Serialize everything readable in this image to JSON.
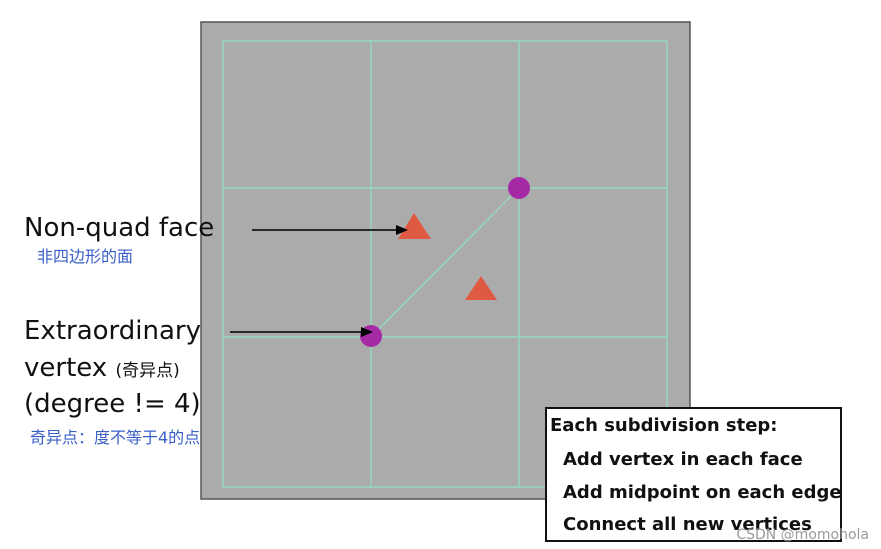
{
  "labels": {
    "non_quad_face": "Non-quad face",
    "non_quad_face_cn": "非四边形的面",
    "extraordinary_line1": "Extraordinary",
    "extraordinary_line2": "vertex",
    "extraordinary_line2_cn": "(奇异点)",
    "extraordinary_line3": "(degree != 4)",
    "extraordinary_cn": "奇异点：度不等于4的点"
  },
  "steps_box": {
    "title": "Each subdivision step:",
    "items": [
      "Add vertex in each face",
      "Add midpoint on each edge",
      "Connect all new vertices"
    ]
  },
  "watermark": "CSDN @momohola",
  "colors": {
    "panel_bg": "#ababab",
    "grid_line": "#8fe3c0",
    "vertex": "#a62aa6",
    "face_marker": "#e05a43",
    "label_cn": "#3a5fc8"
  }
}
